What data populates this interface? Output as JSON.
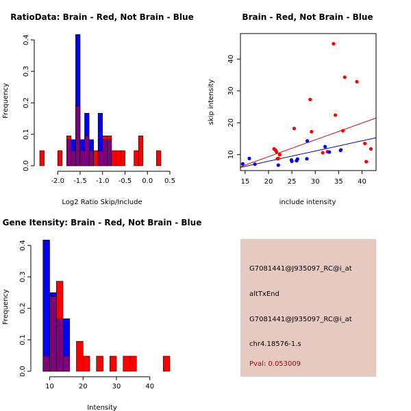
{
  "colors": {
    "brain": "#ff0000",
    "not_brain": "#0000ff",
    "overlap": "#7f007f",
    "brain_line": "#cc0000",
    "not_brain_line": "#000099",
    "pval": "#b30000",
    "info_bg": "#e6c9c1"
  },
  "chart_data": [
    {
      "id": "ratio-hist",
      "type": "histogram",
      "title": "RatioData: Brain - Red, Not Brain - Blue",
      "xlabel": "Log2 Ratio Skip/Include",
      "ylabel": "Frequency",
      "xlim": [
        -2.4,
        0.5
      ],
      "ylim": [
        0,
        0.42
      ],
      "xticks": [
        -2.0,
        -1.5,
        -1.0,
        -0.5,
        0.0,
        0.5
      ],
      "xtick_labels": [
        "-2.0",
        "-1.5",
        "-1.0",
        "-0.5",
        "0.0",
        "0.5"
      ],
      "yticks": [
        0,
        0.1,
        0.2,
        0.3,
        0.4
      ],
      "ytick_labels": [
        "0.0",
        "0.1",
        "0.2",
        "0.3",
        "0.4"
      ],
      "bin_width": 0.1,
      "series": [
        {
          "name": "Brain",
          "color": "red",
          "bin_starts": [
            -2.4,
            -2.0,
            -1.8,
            -1.7,
            -1.6,
            -1.5,
            -1.4,
            -1.3,
            -1.2,
            -1.1,
            -1.0,
            -0.9,
            -0.8,
            -0.7,
            -0.6,
            -0.3,
            -0.2,
            0.2
          ],
          "values": [
            0.048,
            0.048,
            0.095,
            0.048,
            0.19,
            0.048,
            0.095,
            0.048,
            0.048,
            0.048,
            0.095,
            0.095,
            0.048,
            0.048,
            0.048,
            0.048,
            0.095,
            0.048
          ]
        },
        {
          "name": "Not Brain",
          "color": "blue",
          "bin_starts": [
            -1.8,
            -1.7,
            -1.6,
            -1.5,
            -1.4,
            -1.3,
            -1.1,
            -1.0,
            -0.9
          ],
          "values": [
            0.083,
            0.083,
            0.417,
            0.083,
            0.167,
            0.083,
            0.167,
            0.083,
            0.083
          ]
        }
      ]
    },
    {
      "id": "scatter",
      "type": "scatter",
      "title": "Brain - Red, Not Brain - Blue",
      "xlabel": "include intensity",
      "ylabel": "skip intensity",
      "xlim": [
        14.0,
        43.0
      ],
      "ylim": [
        5.0,
        48.0
      ],
      "xticks": [
        15,
        20,
        25,
        30,
        35,
        40
      ],
      "xtick_labels": [
        "15",
        "20",
        "25",
        "30",
        "35",
        "40"
      ],
      "yticks": [
        10,
        20,
        30,
        40
      ],
      "ytick_labels": [
        "10",
        "20",
        "30",
        "40"
      ],
      "series": [
        {
          "name": "Brain",
          "color": "red",
          "x": [
            21.2,
            21.5,
            21.7,
            21.9,
            22.1,
            22.4,
            25.5,
            28.9,
            29.2,
            31.6,
            32.6,
            33.9,
            34.3,
            35.5,
            35.9,
            36.3,
            38.9,
            40.6,
            40.9,
            41.9
          ],
          "y": [
            11.8,
            11.4,
            10.9,
            8.7,
            8.8,
            10.0,
            18.2,
            27.3,
            17.2,
            10.6,
            10.9,
            44.8,
            22.4,
            11.5,
            17.5,
            34.3,
            32.9,
            13.5,
            7.8,
            11.8
          ],
          "fit": [
            [
              14.0,
              6.2
            ],
            [
              43.0,
              21.5
            ]
          ]
        },
        {
          "name": "Not Brain",
          "color": "blue",
          "x": [
            14.5,
            15.9,
            17.1,
            22.1,
            24.9,
            25.0,
            26.0,
            26.2,
            28.2,
            28.3,
            32.1,
            33.0,
            35.4
          ],
          "y": [
            7.1,
            8.8,
            7.0,
            6.7,
            8.3,
            7.9,
            8.1,
            8.6,
            8.7,
            14.3,
            12.5,
            10.8,
            11.3
          ],
          "fit": [
            [
              14.0,
              6.0
            ],
            [
              43.0,
              15.3
            ]
          ]
        }
      ]
    },
    {
      "id": "intensity-hist",
      "type": "histogram",
      "title": "Gene Itensity: Brain - Red, Not Brain - Blue",
      "xlabel": "Intensity",
      "ylabel": "Frequency",
      "xlim": [
        6.0,
        46.0
      ],
      "ylim": [
        0,
        0.42
      ],
      "xticks": [
        10,
        20,
        30,
        40
      ],
      "xtick_labels": [
        "10",
        "20",
        "30",
        "40"
      ],
      "yticks": [
        0,
        0.1,
        0.2,
        0.3,
        0.4
      ],
      "ytick_labels": [
        "0.0",
        "0.1",
        "0.2",
        "0.3",
        "0.4"
      ],
      "bin_width": 2,
      "series": [
        {
          "name": "Brain",
          "color": "red",
          "bin_starts": [
            8,
            10,
            12,
            14,
            18,
            20,
            24,
            28,
            32,
            34,
            44
          ],
          "values": [
            0.048,
            0.238,
            0.286,
            0.048,
            0.095,
            0.048,
            0.048,
            0.048,
            0.048,
            0.048,
            0.048
          ]
        },
        {
          "name": "Not Brain",
          "color": "blue",
          "bin_starts": [
            8,
            10,
            12,
            14
          ],
          "values": [
            0.417,
            0.25,
            0.167,
            0.167
          ]
        }
      ]
    }
  ],
  "info": {
    "probe_1": "G7081441@J935097_RC@i_at",
    "event_type": "altTxEnd",
    "probe_2": "G7081441@J935097_RC@i_at",
    "locus": "chr4.18576-1.s",
    "pval": "Pval: 0.053009"
  }
}
